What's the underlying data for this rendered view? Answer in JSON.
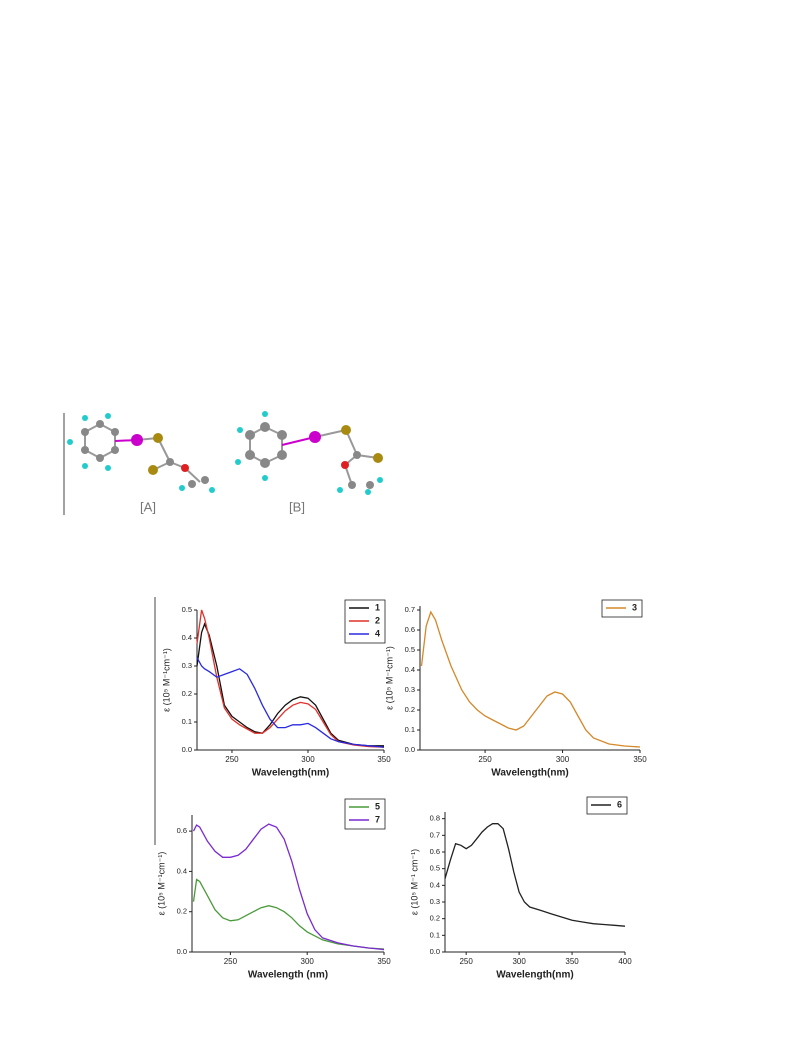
{
  "figure": {
    "labels": [
      "[A]",
      "[B]"
    ]
  },
  "chart_data": [
    {
      "type": "line",
      "xlabel": "Wavelength(nm)",
      "ylabel": "ε (10⁵ M⁻¹cm⁻¹)",
      "x": [
        227,
        230,
        232,
        235,
        240,
        245,
        250,
        255,
        260,
        265,
        270,
        275,
        280,
        285,
        290,
        295,
        300,
        305,
        310,
        315,
        320,
        330,
        340,
        350
      ],
      "series": [
        {
          "name": "1",
          "color": "#111111",
          "values": [
            0.3,
            0.42,
            0.45,
            0.41,
            0.3,
            0.16,
            0.12,
            0.1,
            0.08,
            0.065,
            0.06,
            0.09,
            0.13,
            0.16,
            0.18,
            0.19,
            0.185,
            0.16,
            0.11,
            0.06,
            0.035,
            0.02,
            0.015,
            0.015
          ]
        },
        {
          "name": "2",
          "color": "#e0302a",
          "values": [
            0.38,
            0.5,
            0.47,
            0.4,
            0.26,
            0.15,
            0.11,
            0.09,
            0.075,
            0.06,
            0.06,
            0.08,
            0.11,
            0.14,
            0.16,
            0.17,
            0.165,
            0.145,
            0.1,
            0.055,
            0.03,
            0.018,
            0.012,
            0.01
          ]
        },
        {
          "name": "4",
          "color": "#2a2ae0",
          "values": [
            0.33,
            0.3,
            0.29,
            0.28,
            0.26,
            0.27,
            0.28,
            0.29,
            0.27,
            0.22,
            0.16,
            0.11,
            0.08,
            0.08,
            0.09,
            0.09,
            0.095,
            0.08,
            0.06,
            0.04,
            0.03,
            0.02,
            0.015,
            0.01
          ]
        }
      ],
      "xlim": [
        227,
        350
      ],
      "xticks": [
        250,
        300,
        350
      ],
      "ylim": [
        0,
        0.5
      ],
      "yticks": [
        {
          "value": 0,
          "label": "0.0"
        },
        0.1,
        0.2,
        0.3,
        0.4,
        0.5
      ]
    },
    {
      "type": "line",
      "xlabel": "Wavelength(nm)",
      "ylabel": "ε (10⁵ M⁻¹cm⁻¹)",
      "x": [
        209,
        212,
        215,
        218,
        222,
        228,
        235,
        240,
        245,
        250,
        255,
        260,
        265,
        270,
        275,
        280,
        285,
        290,
        295,
        300,
        305,
        310,
        315,
        320,
        330,
        340,
        350
      ],
      "series": [
        {
          "name": "3",
          "color": "#d4882a",
          "values": [
            0.42,
            0.62,
            0.69,
            0.65,
            0.55,
            0.42,
            0.3,
            0.24,
            0.2,
            0.17,
            0.15,
            0.13,
            0.11,
            0.1,
            0.12,
            0.17,
            0.22,
            0.27,
            0.29,
            0.28,
            0.24,
            0.17,
            0.1,
            0.06,
            0.03,
            0.02,
            0.015
          ]
        }
      ],
      "xlim": [
        208,
        350
      ],
      "xticks": [
        250,
        300,
        350
      ],
      "ylim": [
        0,
        0.72
      ],
      "yticks": [
        {
          "value": 0,
          "label": "0.0"
        },
        0.1,
        0.2,
        0.3,
        0.4,
        0.5,
        0.6,
        0.7
      ]
    },
    {
      "type": "line",
      "xlabel": "Wavelength (nm)",
      "ylabel": "ε (10⁵ M⁻¹cm⁻¹)",
      "x": [
        226,
        228,
        230,
        235,
        240,
        245,
        250,
        255,
        260,
        265,
        270,
        275,
        280,
        285,
        290,
        295,
        300,
        305,
        310,
        320,
        330,
        340,
        350
      ],
      "series": [
        {
          "name": "5",
          "color": "#4a9a3a",
          "values": [
            0.25,
            0.36,
            0.35,
            0.28,
            0.21,
            0.17,
            0.155,
            0.16,
            0.18,
            0.2,
            0.22,
            0.23,
            0.22,
            0.2,
            0.17,
            0.13,
            0.1,
            0.08,
            0.06,
            0.04,
            0.03,
            0.02,
            0.015
          ]
        },
        {
          "name": "7",
          "color": "#7a2ad0",
          "values": [
            0.6,
            0.63,
            0.62,
            0.55,
            0.5,
            0.47,
            0.47,
            0.48,
            0.51,
            0.56,
            0.61,
            0.635,
            0.62,
            0.56,
            0.45,
            0.31,
            0.19,
            0.11,
            0.07,
            0.045,
            0.03,
            0.02,
            0.012
          ]
        }
      ],
      "xlim": [
        225,
        350
      ],
      "xticks": [
        250,
        300,
        350
      ],
      "ylim": [
        0,
        0.68
      ],
      "yticks": [
        {
          "value": 0,
          "label": "0.0"
        },
        0.2,
        0.4,
        0.6
      ]
    },
    {
      "type": "line",
      "xlabel": "Wavelength(nm)",
      "ylabel": "ε (10⁵ M⁻¹ cm⁻¹)",
      "x": [
        230,
        235,
        240,
        245,
        250,
        255,
        260,
        265,
        270,
        275,
        280,
        285,
        290,
        295,
        300,
        305,
        310,
        320,
        330,
        340,
        350,
        360,
        370,
        380,
        390,
        400
      ],
      "series": [
        {
          "name": "6",
          "color": "#222222",
          "values": [
            0.44,
            0.55,
            0.65,
            0.64,
            0.62,
            0.64,
            0.68,
            0.72,
            0.75,
            0.77,
            0.77,
            0.74,
            0.62,
            0.48,
            0.36,
            0.3,
            0.27,
            0.25,
            0.23,
            0.21,
            0.19,
            0.18,
            0.17,
            0.165,
            0.16,
            0.155
          ]
        }
      ],
      "xlim": [
        230,
        400
      ],
      "xticks": [
        250,
        300,
        350,
        400
      ],
      "ylim": [
        0,
        0.84
      ],
      "yticks": [
        {
          "value": 0,
          "label": "0.0"
        },
        0.1,
        0.2,
        0.3,
        0.4,
        0.5,
        0.6,
        0.7,
        0.8
      ]
    }
  ]
}
